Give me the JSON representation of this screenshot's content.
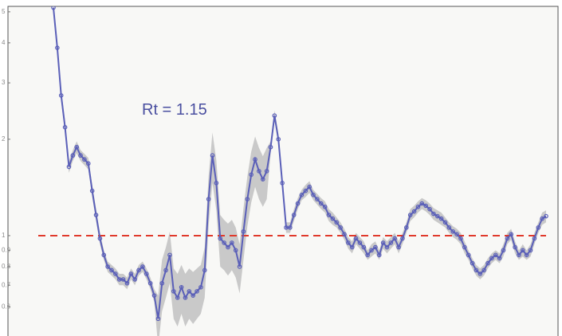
{
  "chart_data": {
    "type": "line",
    "annotation": "Rt =  1.15",
    "yscale": "log",
    "ylim": [
      0.5,
      5.2
    ],
    "yticks": [
      5,
      4,
      3,
      2,
      1,
      0.9,
      0.8,
      0.7,
      0.6
    ],
    "reference_line": {
      "value": 1,
      "color": "#e0392b"
    },
    "series": [
      {
        "color": "#5a5fb8",
        "values": [
          5.15,
          3.86,
          2.74,
          2.18,
          1.64,
          1.78,
          1.89,
          1.78,
          1.73,
          1.68,
          1.38,
          1.16,
          0.98,
          0.87,
          0.8,
          0.78,
          0.76,
          0.73,
          0.73,
          0.71,
          0.76,
          0.73,
          0.78,
          0.8,
          0.76,
          0.71,
          0.65,
          0.55,
          0.71,
          0.78,
          0.87,
          0.67,
          0.64,
          0.69,
          0.64,
          0.67,
          0.65,
          0.67,
          0.69,
          0.78,
          1.3,
          1.78,
          1.46,
          0.98,
          0.95,
          0.92,
          0.95,
          0.9,
          0.8,
          1.03,
          1.3,
          1.55,
          1.73,
          1.59,
          1.5,
          1.59,
          1.89,
          2.37,
          2.0,
          1.46,
          1.06,
          1.06,
          1.16,
          1.26,
          1.34,
          1.38,
          1.42,
          1.34,
          1.3,
          1.26,
          1.23,
          1.16,
          1.13,
          1.1,
          1.06,
          1.01,
          0.95,
          0.92,
          0.98,
          0.95,
          0.92,
          0.87,
          0.9,
          0.92,
          0.87,
          0.95,
          0.92,
          0.95,
          0.98,
          0.92,
          0.98,
          1.06,
          1.16,
          1.19,
          1.23,
          1.26,
          1.24,
          1.21,
          1.17,
          1.15,
          1.13,
          1.1,
          1.06,
          1.03,
          1.01,
          0.98,
          0.92,
          0.87,
          0.82,
          0.78,
          0.76,
          0.78,
          0.82,
          0.85,
          0.87,
          0.85,
          0.9,
          0.98,
          1.01,
          0.92,
          0.87,
          0.9,
          0.87,
          0.9,
          0.98,
          1.06,
          1.13,
          1.15
        ]
      }
    ],
    "band": {
      "color": "#b9b9b9",
      "upper": [
        5.36,
        4.01,
        2.85,
        2.27,
        1.71,
        1.85,
        1.97,
        1.85,
        1.8,
        1.75,
        1.44,
        1.21,
        1.02,
        0.9,
        0.83,
        0.81,
        0.79,
        0.76,
        0.76,
        0.74,
        0.79,
        0.76,
        0.81,
        0.83,
        0.79,
        0.74,
        0.68,
        0.65,
        0.84,
        0.92,
        1.03,
        0.79,
        0.76,
        0.81,
        0.76,
        0.79,
        0.77,
        0.79,
        0.81,
        0.92,
        1.53,
        2.1,
        1.72,
        1.16,
        1.12,
        1.09,
        1.12,
        1.06,
        0.94,
        1.22,
        1.53,
        1.83,
        2.04,
        1.88,
        1.77,
        1.88,
        1.97,
        2.46,
        2.08,
        1.52,
        1.1,
        1.1,
        1.21,
        1.31,
        1.39,
        1.44,
        1.48,
        1.39,
        1.35,
        1.31,
        1.28,
        1.21,
        1.18,
        1.14,
        1.1,
        1.05,
        0.99,
        0.96,
        1.02,
        0.99,
        0.96,
        0.9,
        0.94,
        0.96,
        0.9,
        0.99,
        0.96,
        0.99,
        1.02,
        0.96,
        1.02,
        1.1,
        1.21,
        1.24,
        1.28,
        1.31,
        1.29,
        1.26,
        1.22,
        1.2,
        1.18,
        1.14,
        1.1,
        1.07,
        1.05,
        1.02,
        0.96,
        0.9,
        0.85,
        0.81,
        0.79,
        0.81,
        0.85,
        0.88,
        0.9,
        0.88,
        0.94,
        1.02,
        1.05,
        0.96,
        0.9,
        0.94,
        0.9,
        0.94,
        1.02,
        1.1,
        1.18,
        1.2
      ],
      "lower": [
        4.94,
        3.71,
        2.63,
        2.09,
        1.57,
        1.71,
        1.81,
        1.71,
        1.66,
        1.61,
        1.32,
        1.11,
        0.94,
        0.84,
        0.77,
        0.75,
        0.73,
        0.7,
        0.7,
        0.68,
        0.73,
        0.7,
        0.75,
        0.77,
        0.73,
        0.68,
        0.62,
        0.45,
        0.58,
        0.64,
        0.71,
        0.55,
        0.52,
        0.57,
        0.52,
        0.55,
        0.53,
        0.55,
        0.57,
        0.64,
        1.07,
        1.46,
        1.2,
        0.8,
        0.78,
        0.75,
        0.78,
        0.74,
        0.66,
        0.84,
        1.07,
        1.27,
        1.42,
        1.3,
        1.23,
        1.3,
        1.81,
        2.28,
        1.92,
        1.4,
        1.02,
        1.02,
        1.11,
        1.21,
        1.29,
        1.32,
        1.36,
        1.29,
        1.25,
        1.21,
        1.18,
        1.11,
        1.08,
        1.06,
        1.02,
        0.97,
        0.91,
        0.88,
        0.94,
        0.91,
        0.88,
        0.84,
        0.86,
        0.88,
        0.84,
        0.91,
        0.88,
        0.91,
        0.94,
        0.88,
        0.94,
        1.02,
        1.11,
        1.14,
        1.18,
        1.21,
        1.19,
        1.16,
        1.12,
        1.1,
        1.08,
        1.06,
        1.02,
        0.99,
        0.97,
        0.94,
        0.88,
        0.84,
        0.79,
        0.75,
        0.73,
        0.75,
        0.79,
        0.82,
        0.84,
        0.82,
        0.86,
        0.94,
        0.97,
        0.88,
        0.84,
        0.86,
        0.84,
        0.86,
        0.94,
        1.02,
        1.08,
        1.1
      ]
    }
  }
}
